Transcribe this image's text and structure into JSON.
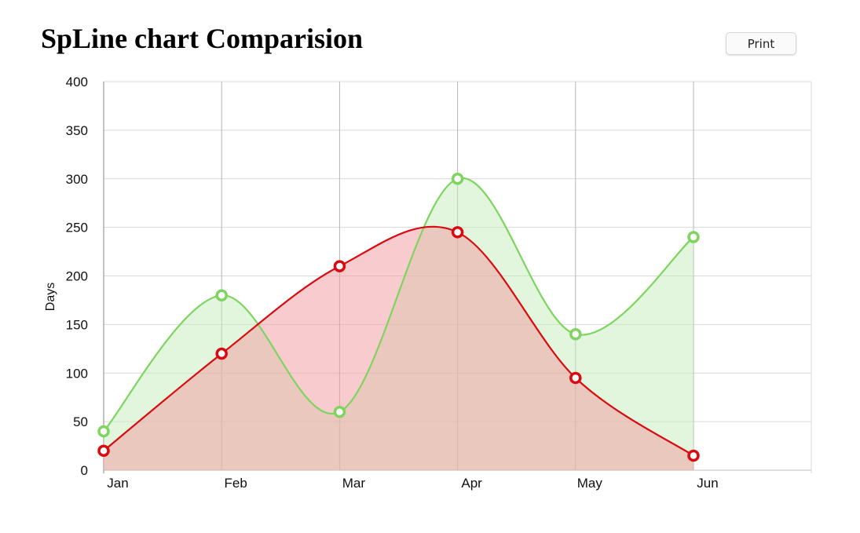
{
  "page": {
    "title": "SpLine chart Comparision",
    "print_label": "Print"
  },
  "chart_data": {
    "type": "area",
    "subtype": "spline",
    "title": "SpLine chart Comparision",
    "xlabel": "",
    "ylabel": "Days",
    "categories": [
      "Jan",
      "Feb",
      "Mar",
      "Apr",
      "May",
      "Jun"
    ],
    "ylim": [
      0,
      400
    ],
    "yticks": [
      0,
      50,
      100,
      150,
      200,
      250,
      300,
      350,
      400
    ],
    "grid": true,
    "legend": "none",
    "series": [
      {
        "values": [
          40,
          180,
          60,
          300,
          140,
          240
        ],
        "color": "#7ed45f",
        "fill": "#c6eebb"
      },
      {
        "values": [
          20,
          120,
          210,
          245,
          95,
          15
        ],
        "color": "#d90a10",
        "fill": "#f29aa0"
      }
    ]
  }
}
